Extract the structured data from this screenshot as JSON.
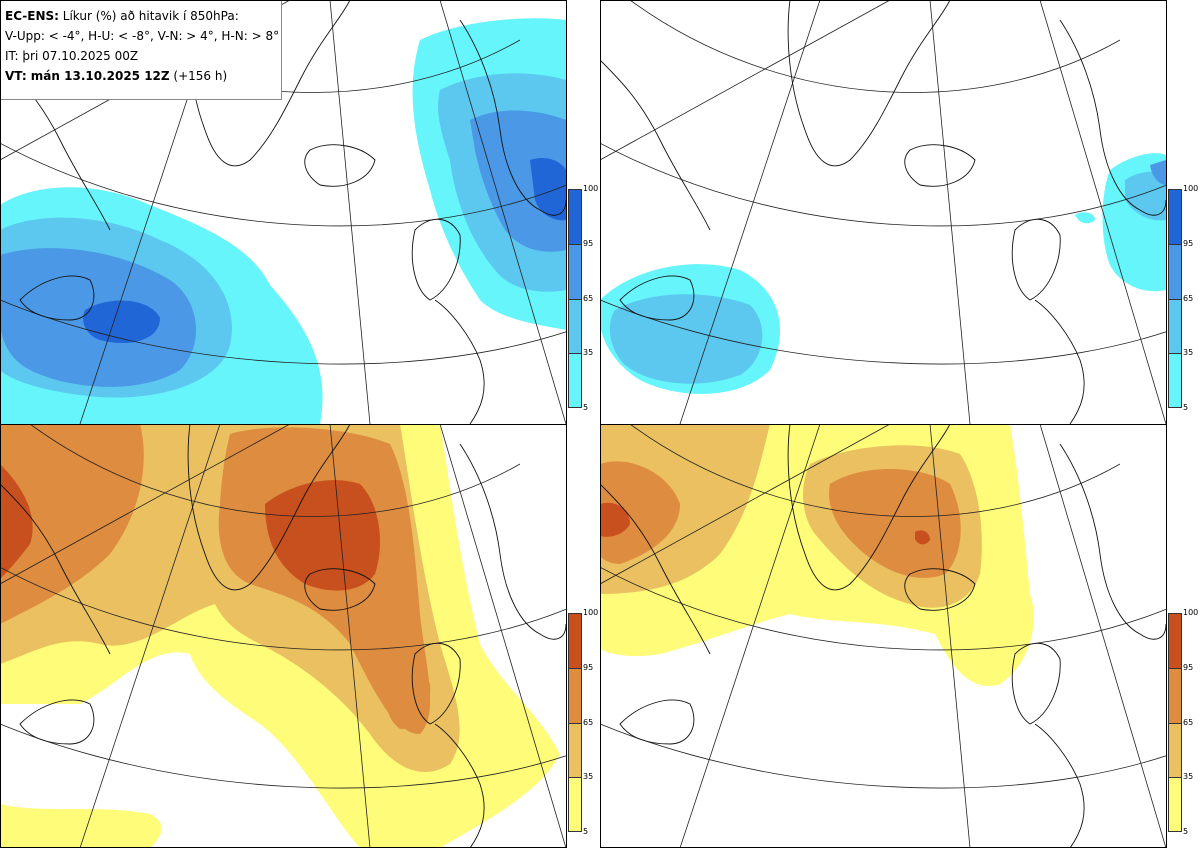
{
  "info": {
    "title_bold": "EC-ENS:",
    "title_rest": " Líkur (%) að hitavik í 850hPa:",
    "thresholds": "V-Upp: < -4°, H-U: < -8°, V-N: > 4°, H-N: > 8°",
    "initial_time": "IT: þri 07.10.2025 00Z",
    "valid_bold": "VT: mán 13.10.2025 12Z",
    "valid_rest": " (+156 h)"
  },
  "colorbars": {
    "cold": {
      "ticks": [
        "100",
        "95",
        "65",
        "35",
        "5"
      ],
      "colors": [
        "#2166d6",
        "#4a98e6",
        "#5cc8ef",
        "#66f5fb"
      ]
    },
    "warm": {
      "ticks": [
        "100",
        "95",
        "65",
        "35",
        "5"
      ],
      "colors": [
        "#c8501e",
        "#de8c40",
        "#eac060",
        "#fefc78"
      ]
    }
  },
  "panels": [
    {
      "name": "cold-4",
      "scheme": "cold"
    },
    {
      "name": "cold-8",
      "scheme": "cold"
    },
    {
      "name": "warm-4",
      "scheme": "warm"
    },
    {
      "name": "warm-8",
      "scheme": "warm"
    }
  ]
}
